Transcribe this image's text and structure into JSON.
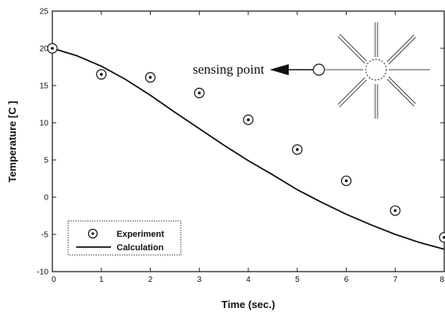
{
  "chart_data": {
    "type": "line",
    "title": "",
    "xlabel": "Time (sec.)",
    "ylabel": "Temperature [C ]",
    "xlim": [
      0,
      8
    ],
    "ylim": [
      -10,
      25
    ],
    "xticks": [
      "0",
      "1",
      "2",
      "3",
      "4",
      "5",
      "6",
      "7",
      "8"
    ],
    "yticks": [
      "-10",
      "-5",
      "0",
      "5",
      "10",
      "15",
      "20",
      "25"
    ],
    "grid": false,
    "legend_position": "bottom-left",
    "series": [
      {
        "name": "Experiment",
        "style": "circled-dot markers",
        "x": [
          0,
          1,
          2,
          3,
          4,
          5,
          6,
          7,
          8
        ],
        "y": [
          20.0,
          16.5,
          16.1,
          14.0,
          10.4,
          6.4,
          2.2,
          -1.8,
          -5.4
        ]
      },
      {
        "name": "Calculation",
        "style": "solid line",
        "x": [
          0,
          0.5,
          1,
          1.5,
          2,
          2.5,
          3,
          3.5,
          4,
          4.5,
          5,
          5.5,
          6,
          6.5,
          7,
          7.5,
          8
        ],
        "y": [
          20.0,
          19.0,
          17.6,
          15.8,
          13.7,
          11.4,
          9.2,
          7.0,
          4.9,
          3.0,
          1.0,
          -0.7,
          -2.3,
          -3.7,
          -5.0,
          -6.1,
          -7.0
        ]
      }
    ],
    "annotation": {
      "text": "sensing point"
    }
  }
}
